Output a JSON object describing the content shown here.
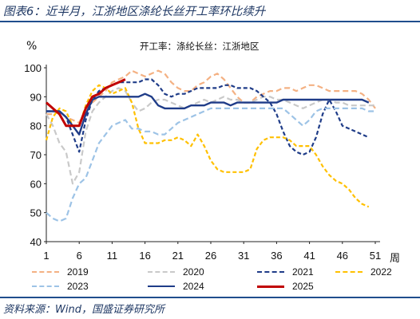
{
  "header": {
    "title": "图表6：近半月，江浙地区涤纶长丝开工率环比续升"
  },
  "footer": {
    "source": "资料来源：Wind，国盛证券研究所"
  },
  "chart_data": {
    "type": "line",
    "title": "开工率：涤纶长丝：江浙地区",
    "ylabel": "%",
    "xlabel": "周",
    "ylim": [
      40,
      100
    ],
    "xlim": [
      1,
      51
    ],
    "yticks": [
      40,
      50,
      60,
      70,
      80,
      90,
      100
    ],
    "xticks": [
      1,
      6,
      11,
      16,
      21,
      26,
      31,
      36,
      41,
      46,
      51
    ],
    "grid": false,
    "legend_position": "bottom",
    "series": [
      {
        "name": "2019",
        "color": "#f4b183",
        "dash": "7,4",
        "width": 2.2,
        "x": [
          1,
          2,
          3,
          4,
          5,
          6,
          7,
          8,
          9,
          10,
          11,
          12,
          13,
          14,
          15,
          16,
          17,
          18,
          19,
          20,
          21,
          22,
          23,
          24,
          25,
          26,
          27,
          28,
          29,
          30,
          31,
          32,
          33,
          34,
          35,
          36,
          37,
          38,
          39,
          40,
          41,
          42,
          43,
          44,
          45,
          46,
          47,
          48,
          49,
          50,
          51
        ],
        "y": [
          84,
          84,
          85,
          83,
          82,
          81,
          86,
          88,
          90,
          92,
          95,
          96,
          97,
          99,
          98,
          97,
          98,
          99,
          98,
          95,
          93,
          92,
          92,
          94,
          95,
          97,
          98,
          96,
          93,
          90,
          88,
          88,
          90,
          91,
          92,
          92,
          93,
          93,
          92,
          93,
          94,
          94,
          93,
          92,
          92,
          92,
          92,
          92,
          91,
          89,
          86
        ]
      },
      {
        "name": "2020",
        "color": "#c9c9c9",
        "dash": "7,4",
        "width": 2.2,
        "x": [
          1,
          2,
          3,
          4,
          5,
          6,
          7,
          8,
          9,
          10,
          11,
          12,
          13,
          14,
          15,
          16,
          17,
          18,
          19,
          20,
          21,
          22,
          23,
          24,
          25,
          26,
          27,
          28,
          29,
          30,
          31,
          32,
          33,
          34,
          35,
          36,
          37,
          38,
          39,
          40,
          41,
          42,
          43,
          44,
          45,
          46,
          47,
          48,
          49,
          50,
          51
        ],
        "y": [
          84,
          80,
          74,
          71,
          60,
          64,
          78,
          85,
          88,
          90,
          92,
          93,
          92,
          88,
          85,
          86,
          88,
          89,
          89,
          88,
          87,
          86,
          87,
          88,
          89,
          88,
          89,
          90,
          89,
          89,
          88,
          88,
          89,
          90,
          90,
          89,
          89,
          88,
          87,
          86,
          87,
          88,
          89,
          89,
          88,
          88,
          87,
          87,
          87,
          87,
          87
        ]
      },
      {
        "name": "2021",
        "color": "#1f3c88",
        "dash": "5,3",
        "width": 2.2,
        "x": [
          1,
          2,
          3,
          4,
          5,
          6,
          7,
          8,
          9,
          10,
          11,
          12,
          13,
          14,
          15,
          16,
          17,
          18,
          19,
          20,
          21,
          22,
          23,
          24,
          25,
          26,
          27,
          28,
          29,
          30,
          31,
          32,
          33,
          34,
          35,
          36,
          37,
          38,
          39,
          40,
          41,
          42,
          43,
          44,
          45,
          46,
          47,
          48,
          49,
          50
        ],
        "y": [
          85,
          85,
          85,
          83,
          77,
          71,
          82,
          89,
          92,
          93,
          94,
          95,
          95,
          95,
          95,
          96,
          96,
          94,
          91,
          90,
          91,
          91,
          92,
          93,
          93,
          93,
          93,
          94,
          94,
          93,
          93,
          93,
          92,
          90,
          88,
          84,
          78,
          73,
          71,
          70,
          71,
          76,
          84,
          89,
          85,
          80,
          79,
          78,
          77,
          76
        ]
      },
      {
        "name": "2022",
        "color": "#ffc000",
        "dash": "5,3",
        "width": 2.2,
        "x": [
          1,
          2,
          3,
          4,
          5,
          6,
          7,
          8,
          9,
          10,
          11,
          12,
          13,
          14,
          15,
          16,
          17,
          18,
          19,
          20,
          21,
          22,
          23,
          24,
          25,
          26,
          27,
          28,
          29,
          30,
          31,
          32,
          33,
          34,
          35,
          36,
          37,
          38,
          39,
          40,
          41,
          42,
          43,
          44,
          45,
          46,
          47,
          48,
          49,
          50
        ],
        "y": [
          75,
          83,
          86,
          85,
          80,
          80,
          87,
          92,
          94,
          93,
          91,
          92,
          93,
          88,
          79,
          74,
          74,
          74,
          75,
          75,
          76,
          75,
          73,
          77,
          73,
          68,
          65,
          64,
          64,
          64,
          64,
          65,
          72,
          75,
          76,
          76,
          76,
          75,
          73,
          73,
          73,
          70,
          66,
          63,
          61,
          60,
          58,
          55,
          53,
          52
        ]
      },
      {
        "name": "2023",
        "color": "#9dc3e6",
        "dash": "7,4",
        "width": 2.2,
        "x": [
          1,
          2,
          3,
          4,
          5,
          6,
          7,
          8,
          9,
          10,
          11,
          12,
          13,
          14,
          15,
          16,
          17,
          18,
          19,
          20,
          21,
          22,
          23,
          24,
          25,
          26,
          27,
          28,
          29,
          30,
          31,
          32,
          33,
          34,
          35,
          36,
          37,
          38,
          39,
          40,
          41,
          42,
          43,
          44,
          45,
          46,
          47,
          48,
          49,
          50,
          51
        ],
        "y": [
          50,
          48,
          47,
          48,
          55,
          60,
          62,
          68,
          74,
          77,
          80,
          81,
          82,
          79,
          79,
          78,
          78,
          77,
          77,
          79,
          81,
          82,
          83,
          84,
          85,
          86,
          86,
          86,
          86,
          86,
          86,
          86,
          86,
          86,
          86,
          86,
          86,
          84,
          82,
          80,
          82,
          85,
          86,
          86,
          86,
          86,
          86,
          86,
          86,
          85,
          85
        ]
      },
      {
        "name": "2024",
        "color": "#1f3c88",
        "dash": "",
        "width": 2.4,
        "x": [
          1,
          2,
          3,
          4,
          5,
          6,
          7,
          8,
          9,
          10,
          11,
          12,
          13,
          14,
          15,
          16,
          17,
          18,
          19,
          20,
          21,
          22,
          23,
          24,
          25,
          26,
          27,
          28,
          29,
          30,
          31,
          32,
          33,
          34,
          35,
          36,
          37,
          38,
          39,
          40,
          41,
          42,
          43,
          44,
          45,
          46,
          47,
          48,
          49,
          50
        ],
        "y": [
          85,
          85,
          85,
          83,
          80,
          77,
          84,
          89,
          90,
          90,
          90,
          90,
          90,
          90,
          90,
          91,
          90,
          87,
          86,
          86,
          86,
          86,
          87,
          87,
          87,
          88,
          88,
          88,
          87,
          88,
          88,
          88,
          88,
          88,
          88,
          88,
          89,
          89,
          89,
          89,
          89,
          89,
          89,
          89,
          89,
          89,
          89,
          89,
          89,
          88
        ]
      },
      {
        "name": "2025",
        "color": "#c00000",
        "dash": "",
        "width": 3,
        "x": [
          1,
          2,
          3,
          4,
          5,
          6,
          7,
          8,
          9,
          10,
          11,
          12,
          13
        ],
        "y": [
          88,
          86,
          84,
          80,
          80,
          80,
          86,
          90,
          91,
          93,
          94,
          95,
          96
        ]
      }
    ]
  }
}
